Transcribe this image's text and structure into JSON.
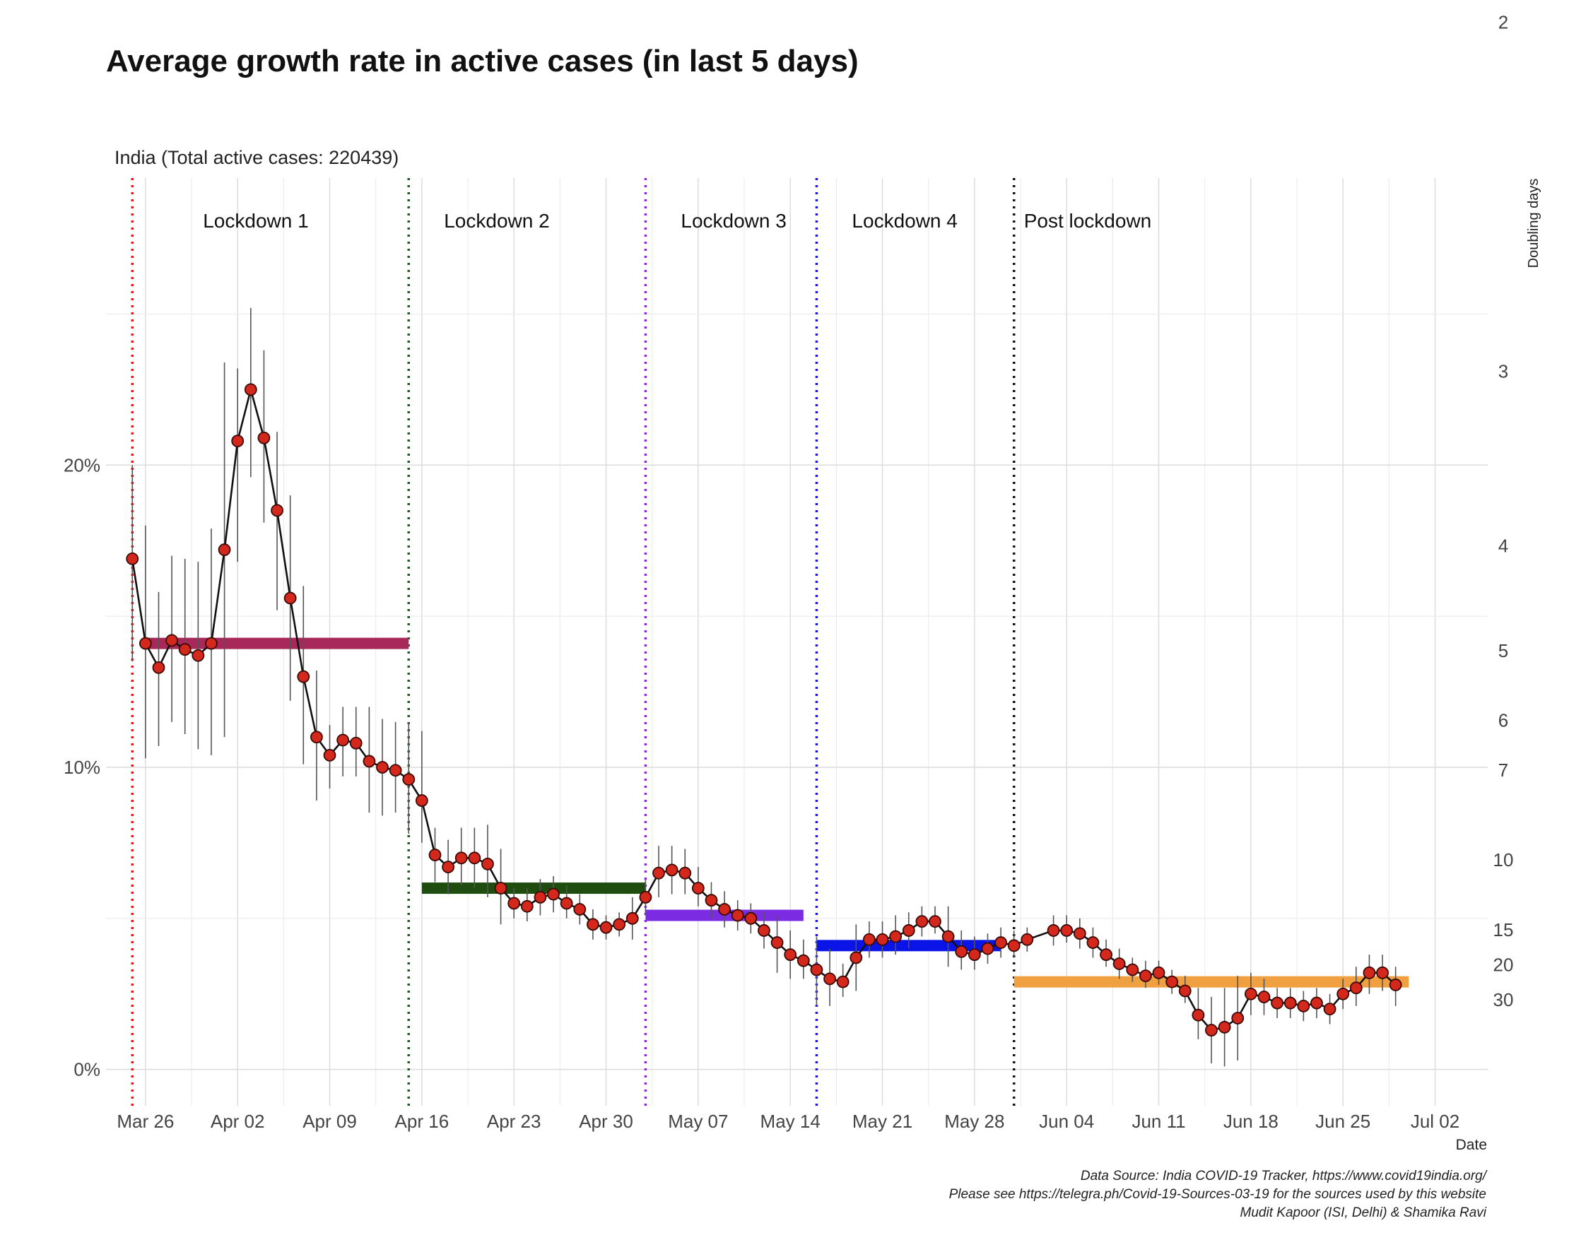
{
  "title": "Average growth rate in active cases (in last 5 days)",
  "subtitle": "India (Total active cases: 220439)",
  "caption": {
    "line1": "Data Source: India COVID-19 Tracker, https://www.covid19india.org/",
    "line2": "Please see https://telegra.ph/Covid-19-Sources-03-19 for the sources used by this website",
    "line3": "Mudit Kapoor (ISI, Delhi) & Shamika Ravi"
  },
  "chart_data": {
    "type": "line",
    "xlabel": "Date",
    "ylabel": "",
    "y2label": "Doubling days",
    "x_start": "2020-03-25",
    "xlim": [
      "2020-03-23",
      "2020-07-06"
    ],
    "ylim": [
      -0.012,
      0.295
    ],
    "yticks": [
      {
        "value": 0.0,
        "label": "0%"
      },
      {
        "value": 0.1,
        "label": "10%"
      },
      {
        "value": 0.2,
        "label": "20%"
      }
    ],
    "y2ticks": [
      {
        "value": 2,
        "label": "2"
      },
      {
        "value": 3,
        "label": "3"
      },
      {
        "value": 4,
        "label": "4"
      },
      {
        "value": 5,
        "label": "5"
      },
      {
        "value": 6,
        "label": "6"
      },
      {
        "value": 7,
        "label": "7"
      },
      {
        "value": 10,
        "label": "10"
      },
      {
        "value": 15,
        "label": "15"
      },
      {
        "value": 20,
        "label": "20"
      },
      {
        "value": 30,
        "label": "30"
      }
    ],
    "xticks": [
      {
        "date": "2020-03-26",
        "label": "Mar 26"
      },
      {
        "date": "2020-04-02",
        "label": "Apr 02"
      },
      {
        "date": "2020-04-09",
        "label": "Apr 09"
      },
      {
        "date": "2020-04-16",
        "label": "Apr 16"
      },
      {
        "date": "2020-04-23",
        "label": "Apr 23"
      },
      {
        "date": "2020-04-30",
        "label": "Apr 30"
      },
      {
        "date": "2020-05-07",
        "label": "May 07"
      },
      {
        "date": "2020-05-14",
        "label": "May 14"
      },
      {
        "date": "2020-05-21",
        "label": "May 21"
      },
      {
        "date": "2020-05-28",
        "label": "May 28"
      },
      {
        "date": "2020-06-04",
        "label": "Jun 04"
      },
      {
        "date": "2020-06-11",
        "label": "Jun 11"
      },
      {
        "date": "2020-06-18",
        "label": "Jun 18"
      },
      {
        "date": "2020-06-25",
        "label": "Jun 25"
      },
      {
        "date": "2020-07-02",
        "label": "Jul 02"
      }
    ],
    "phases": [
      {
        "label": "Lockdown 1",
        "start": "2020-03-25",
        "color": "#e31a1c",
        "mean": 0.141,
        "bar_start": "2020-03-26",
        "bar_end": "2020-04-15",
        "bar_color": "#a8285a"
      },
      {
        "label": "Lockdown 2",
        "start": "2020-04-15",
        "color": "#1b5e20",
        "mean": 0.06,
        "bar_start": "2020-04-16",
        "bar_end": "2020-05-03",
        "bar_color": "#1e4d0f"
      },
      {
        "label": "Lockdown 3",
        "start": "2020-05-03",
        "color": "#8a2be2",
        "mean": 0.051,
        "bar_start": "2020-05-03",
        "bar_end": "2020-05-15",
        "bar_color": "#7b2be2"
      },
      {
        "label": "Lockdown 4",
        "start": "2020-05-16",
        "color": "#1a1adc",
        "mean": 0.041,
        "bar_start": "2020-05-16",
        "bar_end": "2020-05-30",
        "bar_color": "#0a14e6"
      },
      {
        "label": "Post lockdown",
        "start": "2020-05-31",
        "color": "#111111",
        "mean": 0.029,
        "bar_start": "2020-05-31",
        "bar_end": "2020-06-30",
        "bar_color": "#f0a040"
      }
    ],
    "series": [
      {
        "point_color": "#d4281c",
        "line_color": "#111111",
        "points": [
          {
            "x": "2020-03-25",
            "y": 0.169,
            "lo": 0.135,
            "hi": 0.2
          },
          {
            "x": "2020-03-26",
            "y": 0.141,
            "lo": 0.103,
            "hi": 0.18
          },
          {
            "x": "2020-03-27",
            "y": 0.133,
            "lo": 0.107,
            "hi": 0.158
          },
          {
            "x": "2020-03-28",
            "y": 0.142,
            "lo": 0.115,
            "hi": 0.17
          },
          {
            "x": "2020-03-29",
            "y": 0.139,
            "lo": 0.111,
            "hi": 0.169
          },
          {
            "x": "2020-03-30",
            "y": 0.137,
            "lo": 0.106,
            "hi": 0.168
          },
          {
            "x": "2020-03-31",
            "y": 0.141,
            "lo": 0.104,
            "hi": 0.179
          },
          {
            "x": "2020-04-01",
            "y": 0.172,
            "lo": 0.11,
            "hi": 0.234
          },
          {
            "x": "2020-04-02",
            "y": 0.208,
            "lo": 0.168,
            "hi": 0.232
          },
          {
            "x": "2020-04-03",
            "y": 0.225,
            "lo": 0.196,
            "hi": 0.252
          },
          {
            "x": "2020-04-04",
            "y": 0.209,
            "lo": 0.181,
            "hi": 0.238
          },
          {
            "x": "2020-04-05",
            "y": 0.185,
            "lo": 0.152,
            "hi": 0.211
          },
          {
            "x": "2020-04-06",
            "y": 0.156,
            "lo": 0.122,
            "hi": 0.19
          },
          {
            "x": "2020-04-07",
            "y": 0.13,
            "lo": 0.101,
            "hi": 0.16
          },
          {
            "x": "2020-04-08",
            "y": 0.11,
            "lo": 0.089,
            "hi": 0.132
          },
          {
            "x": "2020-04-09",
            "y": 0.104,
            "lo": 0.093,
            "hi": 0.114
          },
          {
            "x": "2020-04-10",
            "y": 0.109,
            "lo": 0.097,
            "hi": 0.12
          },
          {
            "x": "2020-04-11",
            "y": 0.108,
            "lo": 0.097,
            "hi": 0.12
          },
          {
            "x": "2020-04-12",
            "y": 0.102,
            "lo": 0.085,
            "hi": 0.12
          },
          {
            "x": "2020-04-13",
            "y": 0.1,
            "lo": 0.084,
            "hi": 0.116
          },
          {
            "x": "2020-04-14",
            "y": 0.099,
            "lo": 0.085,
            "hi": 0.115
          },
          {
            "x": "2020-04-15",
            "y": 0.096,
            "lo": 0.078,
            "hi": 0.115
          },
          {
            "x": "2020-04-16",
            "y": 0.089,
            "lo": 0.075,
            "hi": 0.112
          },
          {
            "x": "2020-04-17",
            "y": 0.071,
            "lo": 0.062,
            "hi": 0.08
          },
          {
            "x": "2020-04-18",
            "y": 0.067,
            "lo": 0.058,
            "hi": 0.076
          },
          {
            "x": "2020-04-19",
            "y": 0.07,
            "lo": 0.061,
            "hi": 0.08
          },
          {
            "x": "2020-04-20",
            "y": 0.07,
            "lo": 0.06,
            "hi": 0.08
          },
          {
            "x": "2020-04-21",
            "y": 0.068,
            "lo": 0.057,
            "hi": 0.081
          },
          {
            "x": "2020-04-22",
            "y": 0.06,
            "lo": 0.048,
            "hi": 0.073
          },
          {
            "x": "2020-04-23",
            "y": 0.055,
            "lo": 0.05,
            "hi": 0.06
          },
          {
            "x": "2020-04-24",
            "y": 0.054,
            "lo": 0.049,
            "hi": 0.06
          },
          {
            "x": "2020-04-25",
            "y": 0.057,
            "lo": 0.051,
            "hi": 0.063
          },
          {
            "x": "2020-04-26",
            "y": 0.058,
            "lo": 0.052,
            "hi": 0.064
          },
          {
            "x": "2020-04-27",
            "y": 0.055,
            "lo": 0.05,
            "hi": 0.061
          },
          {
            "x": "2020-04-28",
            "y": 0.053,
            "lo": 0.048,
            "hi": 0.058
          },
          {
            "x": "2020-04-29",
            "y": 0.048,
            "lo": 0.043,
            "hi": 0.053
          },
          {
            "x": "2020-04-30",
            "y": 0.047,
            "lo": 0.043,
            "hi": 0.051
          },
          {
            "x": "2020-05-01",
            "y": 0.048,
            "lo": 0.044,
            "hi": 0.052
          },
          {
            "x": "2020-05-02",
            "y": 0.05,
            "lo": 0.043,
            "hi": 0.057
          },
          {
            "x": "2020-05-03",
            "y": 0.057,
            "lo": 0.051,
            "hi": 0.063
          },
          {
            "x": "2020-05-04",
            "y": 0.065,
            "lo": 0.057,
            "hi": 0.074
          },
          {
            "x": "2020-05-05",
            "y": 0.066,
            "lo": 0.058,
            "hi": 0.074
          },
          {
            "x": "2020-05-06",
            "y": 0.065,
            "lo": 0.058,
            "hi": 0.073
          },
          {
            "x": "2020-05-07",
            "y": 0.06,
            "lo": 0.054,
            "hi": 0.067
          },
          {
            "x": "2020-05-08",
            "y": 0.056,
            "lo": 0.05,
            "hi": 0.062
          },
          {
            "x": "2020-05-09",
            "y": 0.053,
            "lo": 0.047,
            "hi": 0.059
          },
          {
            "x": "2020-05-10",
            "y": 0.051,
            "lo": 0.046,
            "hi": 0.056
          },
          {
            "x": "2020-05-11",
            "y": 0.05,
            "lo": 0.045,
            "hi": 0.055
          },
          {
            "x": "2020-05-12",
            "y": 0.046,
            "lo": 0.04,
            "hi": 0.052
          },
          {
            "x": "2020-05-13",
            "y": 0.042,
            "lo": 0.032,
            "hi": 0.051
          },
          {
            "x": "2020-05-14",
            "y": 0.038,
            "lo": 0.03,
            "hi": 0.046
          },
          {
            "x": "2020-05-15",
            "y": 0.036,
            "lo": 0.03,
            "hi": 0.043
          },
          {
            "x": "2020-05-16",
            "y": 0.033,
            "lo": 0.021,
            "hi": 0.044
          },
          {
            "x": "2020-05-17",
            "y": 0.03,
            "lo": 0.021,
            "hi": 0.04
          },
          {
            "x": "2020-05-18",
            "y": 0.029,
            "lo": 0.024,
            "hi": 0.035
          },
          {
            "x": "2020-05-19",
            "y": 0.037,
            "lo": 0.026,
            "hi": 0.048
          },
          {
            "x": "2020-05-20",
            "y": 0.043,
            "lo": 0.037,
            "hi": 0.049
          },
          {
            "x": "2020-05-21",
            "y": 0.043,
            "lo": 0.037,
            "hi": 0.049
          },
          {
            "x": "2020-05-22",
            "y": 0.044,
            "lo": 0.038,
            "hi": 0.051
          },
          {
            "x": "2020-05-23",
            "y": 0.046,
            "lo": 0.04,
            "hi": 0.052
          },
          {
            "x": "2020-05-24",
            "y": 0.049,
            "lo": 0.044,
            "hi": 0.054
          },
          {
            "x": "2020-05-25",
            "y": 0.049,
            "lo": 0.045,
            "hi": 0.054
          },
          {
            "x": "2020-05-26",
            "y": 0.044,
            "lo": 0.034,
            "hi": 0.054
          },
          {
            "x": "2020-05-27",
            "y": 0.039,
            "lo": 0.033,
            "hi": 0.046
          },
          {
            "x": "2020-05-28",
            "y": 0.038,
            "lo": 0.033,
            "hi": 0.044
          },
          {
            "x": "2020-05-29",
            "y": 0.04,
            "lo": 0.035,
            "hi": 0.045
          },
          {
            "x": "2020-05-30",
            "y": 0.042,
            "lo": 0.037,
            "hi": 0.047
          },
          {
            "x": "2020-05-31",
            "y": 0.041,
            "lo": 0.037,
            "hi": 0.046
          },
          {
            "x": "2020-06-01",
            "y": 0.043,
            "lo": 0.039,
            "hi": 0.047
          },
          {
            "x": "2020-06-03",
            "y": 0.046,
            "lo": 0.041,
            "hi": 0.051
          },
          {
            "x": "2020-06-04",
            "y": 0.046,
            "lo": 0.042,
            "hi": 0.051
          },
          {
            "x": "2020-06-05",
            "y": 0.045,
            "lo": 0.04,
            "hi": 0.05
          },
          {
            "x": "2020-06-06",
            "y": 0.042,
            "lo": 0.037,
            "hi": 0.047
          },
          {
            "x": "2020-06-07",
            "y": 0.038,
            "lo": 0.034,
            "hi": 0.043
          },
          {
            "x": "2020-06-08",
            "y": 0.035,
            "lo": 0.03,
            "hi": 0.04
          },
          {
            "x": "2020-06-09",
            "y": 0.033,
            "lo": 0.029,
            "hi": 0.037
          },
          {
            "x": "2020-06-10",
            "y": 0.031,
            "lo": 0.027,
            "hi": 0.036
          },
          {
            "x": "2020-06-11",
            "y": 0.032,
            "lo": 0.028,
            "hi": 0.036
          },
          {
            "x": "2020-06-12",
            "y": 0.029,
            "lo": 0.025,
            "hi": 0.033
          },
          {
            "x": "2020-06-13",
            "y": 0.026,
            "lo": 0.022,
            "hi": 0.031
          },
          {
            "x": "2020-06-14",
            "y": 0.018,
            "lo": 0.01,
            "hi": 0.027
          },
          {
            "x": "2020-06-15",
            "y": 0.013,
            "lo": 0.002,
            "hi": 0.024
          },
          {
            "x": "2020-06-16",
            "y": 0.014,
            "lo": 0.001,
            "hi": 0.027
          },
          {
            "x": "2020-06-17",
            "y": 0.017,
            "lo": 0.003,
            "hi": 0.031
          },
          {
            "x": "2020-06-18",
            "y": 0.025,
            "lo": 0.018,
            "hi": 0.032
          },
          {
            "x": "2020-06-19",
            "y": 0.024,
            "lo": 0.018,
            "hi": 0.03
          },
          {
            "x": "2020-06-20",
            "y": 0.022,
            "lo": 0.017,
            "hi": 0.027
          },
          {
            "x": "2020-06-21",
            "y": 0.022,
            "lo": 0.017,
            "hi": 0.027
          },
          {
            "x": "2020-06-22",
            "y": 0.021,
            "lo": 0.016,
            "hi": 0.026
          },
          {
            "x": "2020-06-23",
            "y": 0.022,
            "lo": 0.017,
            "hi": 0.027
          },
          {
            "x": "2020-06-24",
            "y": 0.02,
            "lo": 0.015,
            "hi": 0.025
          },
          {
            "x": "2020-06-25",
            "y": 0.025,
            "lo": 0.02,
            "hi": 0.03
          },
          {
            "x": "2020-06-26",
            "y": 0.027,
            "lo": 0.021,
            "hi": 0.034
          },
          {
            "x": "2020-06-27",
            "y": 0.032,
            "lo": 0.025,
            "hi": 0.038
          },
          {
            "x": "2020-06-28",
            "y": 0.032,
            "lo": 0.026,
            "hi": 0.038
          },
          {
            "x": "2020-06-29",
            "y": 0.028,
            "lo": 0.021,
            "hi": 0.034
          }
        ]
      }
    ]
  }
}
